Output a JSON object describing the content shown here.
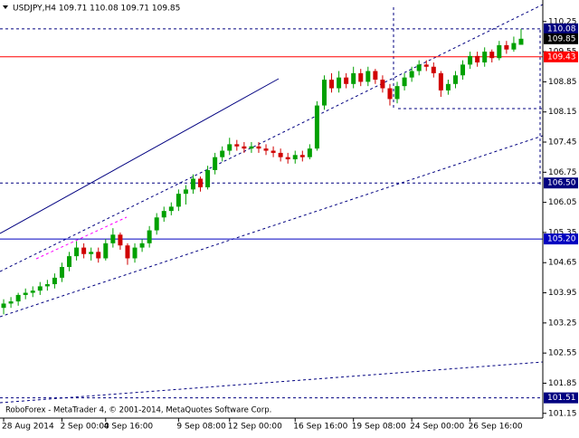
{
  "chart_data": {
    "type": "candlestick",
    "header": "USDJPY,H4 109.71 110.08 109.71 109.85",
    "footer": "RoboForex - MetaTrader 4, © 2001-2014, MetaQuotes Software Corp.",
    "bull_color": "#00a000",
    "bear_color": "#d00000",
    "ylim": [
      101.04,
      110.75
    ],
    "yticks": [
      110.25,
      109.55,
      108.85,
      108.15,
      107.45,
      106.75,
      106.05,
      105.35,
      104.65,
      103.95,
      103.25,
      102.55,
      101.85,
      101.15
    ],
    "levels": [
      {
        "price": 110.08,
        "color": "#000080",
        "style": "dashed"
      },
      {
        "price": 109.85,
        "color": "#000000",
        "style": "none"
      },
      {
        "price": 109.43,
        "color": "#ff0000",
        "style": "solid"
      },
      {
        "price": {
          "value": 106.5,
          "label": "106.50"
        },
        "color": "#000080",
        "style": "dashed"
      },
      {
        "price": {
          "value": 105.2,
          "label": "105.20"
        },
        "color": "#0000c0",
        "style": "solid"
      },
      {
        "price": 101.51,
        "color": "#000080",
        "style": "dashed"
      }
    ],
    "categories": [
      "28 Aug 2014",
      null,
      null,
      null,
      null,
      null,
      null,
      null,
      "2 Sep 00:00",
      null,
      null,
      null,
      null,
      null,
      "4 Sep 16:00",
      null,
      null,
      null,
      null,
      null,
      null,
      null,
      null,
      null,
      "9 Sep 08:00",
      null,
      null,
      null,
      null,
      null,
      null,
      "12 Sep 00:00",
      null,
      null,
      null,
      null,
      null,
      null,
      null,
      null,
      "16 Sep 16:00",
      null,
      null,
      null,
      null,
      null,
      null,
      null,
      "19 Sep 08:00",
      null,
      null,
      null,
      null,
      null,
      null,
      null,
      "24 Sep 00:00",
      null,
      null,
      null,
      null,
      null,
      null,
      null,
      "26 Sep 16:00",
      null,
      null,
      null,
      null,
      null,
      null,
      null
    ],
    "ohlc": [
      [
        103.6,
        103.8,
        103.45,
        103.7
      ],
      [
        103.7,
        103.85,
        103.6,
        103.75
      ],
      [
        103.75,
        103.95,
        103.65,
        103.9
      ],
      [
        103.9,
        104.05,
        103.8,
        103.95
      ],
      [
        103.95,
        104.1,
        103.85,
        104
      ],
      [
        104,
        104.2,
        103.9,
        104.1
      ],
      [
        104.1,
        104.25,
        104,
        104.15
      ],
      [
        104.15,
        104.4,
        104.05,
        104.3
      ],
      [
        104.3,
        104.65,
        104.2,
        104.55
      ],
      [
        104.55,
        104.9,
        104.45,
        104.8
      ],
      [
        104.8,
        105.15,
        104.7,
        105
      ],
      [
        105,
        105.1,
        104.75,
        104.85
      ],
      [
        104.85,
        105,
        104.7,
        104.9
      ],
      [
        104.9,
        105,
        104.65,
        104.75
      ],
      [
        104.75,
        105.2,
        104.7,
        105.1
      ],
      [
        105.1,
        105.45,
        105,
        105.3
      ],
      [
        105.3,
        105.35,
        104.95,
        105.05
      ],
      [
        105.05,
        105.1,
        104.6,
        104.75
      ],
      [
        104.75,
        105.1,
        104.65,
        105
      ],
      [
        105,
        105.2,
        104.9,
        105.1
      ],
      [
        105.1,
        105.5,
        105,
        105.4
      ],
      [
        105.4,
        105.8,
        105.3,
        105.7
      ],
      [
        105.7,
        105.95,
        105.6,
        105.85
      ],
      [
        105.85,
        106.05,
        105.75,
        105.95
      ],
      [
        105.95,
        106.35,
        105.85,
        106.25
      ],
      [
        106.25,
        106.45,
        106,
        106.35
      ],
      [
        106.35,
        106.7,
        106.25,
        106.6
      ],
      [
        106.6,
        106.65,
        106.3,
        106.4
      ],
      [
        106.4,
        106.9,
        106.35,
        106.8
      ],
      [
        106.8,
        107.2,
        106.7,
        107.1
      ],
      [
        107.1,
        107.35,
        107,
        107.25
      ],
      [
        107.25,
        107.55,
        107.15,
        107.4
      ],
      [
        107.4,
        107.5,
        107.25,
        107.35
      ],
      [
        107.35,
        107.45,
        107.2,
        107.3
      ],
      [
        107.3,
        107.45,
        107.2,
        107.35
      ],
      [
        107.35,
        107.45,
        107.2,
        107.3
      ],
      [
        107.3,
        107.4,
        107.15,
        107.25
      ],
      [
        107.25,
        107.35,
        107.1,
        107.2
      ],
      [
        107.2,
        107.3,
        107,
        107.1
      ],
      [
        107.1,
        107.2,
        106.95,
        107.05
      ],
      [
        107.05,
        107.25,
        106.95,
        107.15
      ],
      [
        107.15,
        107.25,
        107,
        107.1
      ],
      [
        107.1,
        107.4,
        107.05,
        107.3
      ],
      [
        107.3,
        108.4,
        107.25,
        108.3
      ],
      [
        108.3,
        109,
        108.2,
        108.9
      ],
      [
        108.9,
        109.05,
        108.6,
        108.7
      ],
      [
        108.7,
        109.1,
        108.6,
        108.95
      ],
      [
        108.95,
        109.05,
        108.7,
        108.8
      ],
      [
        108.8,
        109.2,
        108.7,
        109.05
      ],
      [
        109.05,
        109.15,
        108.75,
        108.85
      ],
      [
        108.85,
        109.2,
        108.75,
        109.1
      ],
      [
        109.1,
        109.15,
        108.8,
        108.9
      ],
      [
        108.9,
        109,
        108.6,
        108.7
      ],
      [
        108.7,
        108.8,
        108.3,
        108.45
      ],
      [
        108.45,
        108.85,
        108.35,
        108.75
      ],
      [
        108.75,
        109.05,
        108.65,
        108.95
      ],
      [
        108.95,
        109.2,
        108.85,
        109.1
      ],
      [
        109.1,
        109.35,
        109,
        109.25
      ],
      [
        109.25,
        109.35,
        109.1,
        109.2
      ],
      [
        109.2,
        109.3,
        108.95,
        109.05
      ],
      [
        109.05,
        109.1,
        108.5,
        108.65
      ],
      [
        108.65,
        108.9,
        108.55,
        108.8
      ],
      [
        108.8,
        109.1,
        108.7,
        109
      ],
      [
        109,
        109.35,
        108.9,
        109.25
      ],
      [
        109.25,
        109.55,
        109.15,
        109.45
      ],
      [
        109.45,
        109.55,
        109.2,
        109.3
      ],
      [
        109.3,
        109.65,
        109.2,
        109.55
      ],
      [
        109.55,
        109.6,
        109.3,
        109.4
      ],
      [
        109.4,
        109.8,
        109.35,
        109.7
      ],
      [
        109.7,
        109.8,
        109.5,
        109.6
      ],
      [
        109.6,
        109.9,
        109.55,
        109.75
      ],
      [
        109.71,
        110.08,
        109.71,
        109.85
      ]
    ]
  }
}
